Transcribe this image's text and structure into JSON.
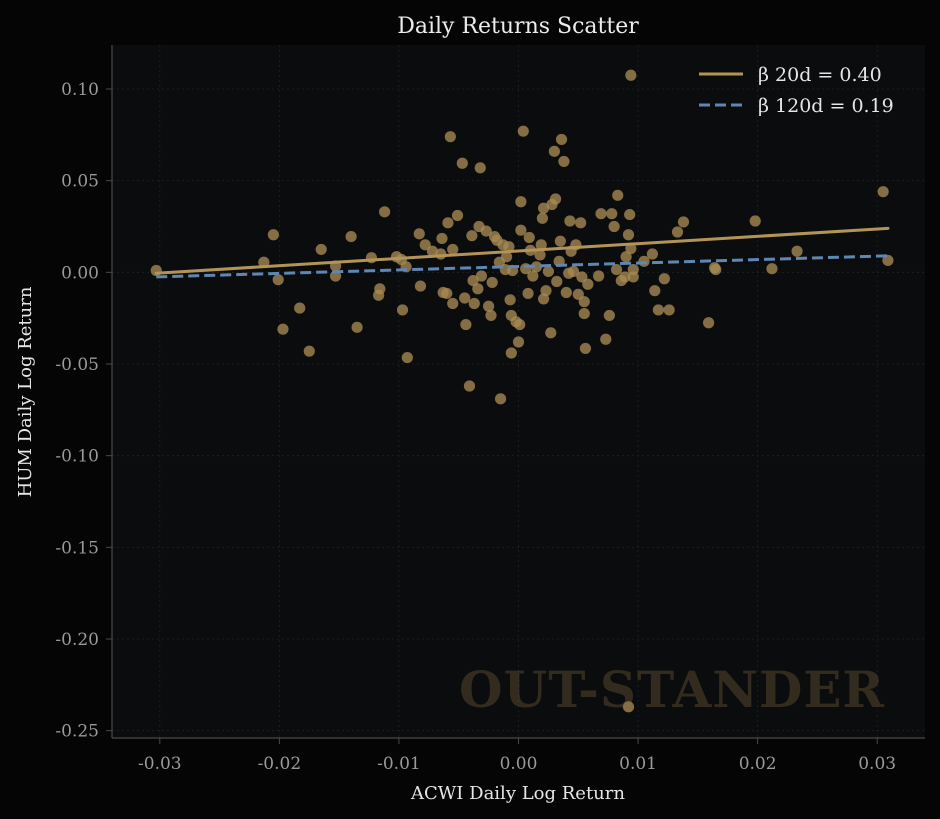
{
  "chart_data": {
    "type": "scatter",
    "title": "Daily Returns Scatter",
    "xlabel": "ACWI Daily Log Return",
    "ylabel": "HUM Daily Log Return",
    "xlim": [
      -0.034,
      0.034
    ],
    "ylim": [
      -0.254,
      0.124
    ],
    "xticks": [
      -0.03,
      -0.02,
      -0.01,
      0.0,
      0.01,
      0.02,
      0.03
    ],
    "xtick_labels": [
      "-0.03",
      "-0.02",
      "-0.01",
      "0.00",
      "0.01",
      "0.02",
      "0.03"
    ],
    "yticks": [
      0.1,
      0.05,
      0.0,
      -0.05,
      -0.1,
      -0.15,
      -0.2,
      -0.25
    ],
    "ytick_labels": [
      "0.10",
      "0.05",
      "0.00",
      "-0.05",
      "-0.10",
      "-0.15",
      "-0.20",
      "-0.25"
    ],
    "grid": true,
    "legend_position": "top-right",
    "watermark": "OUT-STANDER",
    "colors": {
      "background": "#050505",
      "plot_background": "#0b0c0e",
      "points": "#a88a52",
      "line_20d": "#b39458",
      "line_120d": "#5f87b3",
      "grid": "#1f2226",
      "axis": "#4a4a4a"
    },
    "series": [
      {
        "name": "",
        "kind": "points",
        "points": [
          [
            -0.0303,
            0.001
          ],
          [
            -0.0213,
            0.0055
          ],
          [
            -0.0205,
            0.0205
          ],
          [
            -0.0201,
            -0.004
          ],
          [
            -0.0197,
            -0.031
          ],
          [
            -0.0183,
            -0.0195
          ],
          [
            -0.0175,
            -0.043
          ],
          [
            -0.0165,
            0.0125
          ],
          [
            -0.0153,
            0.0035
          ],
          [
            -0.0153,
            -0.002
          ],
          [
            -0.014,
            0.0195
          ],
          [
            -0.0135,
            -0.03
          ],
          [
            -0.0123,
            0.008
          ],
          [
            -0.0117,
            -0.0125
          ],
          [
            -0.0116,
            -0.009
          ],
          [
            -0.0112,
            0.033
          ],
          [
            -0.0102,
            0.0085
          ],
          [
            -0.0098,
            0.007
          ],
          [
            -0.0097,
            -0.0205
          ],
          [
            -0.0094,
            0.003
          ],
          [
            -0.0093,
            -0.0465
          ],
          [
            -0.0083,
            0.021
          ],
          [
            -0.0082,
            -0.0075
          ],
          [
            -0.0078,
            0.015
          ],
          [
            -0.0072,
            0.0115
          ],
          [
            -0.0063,
            -0.011
          ],
          [
            -0.0064,
            0.0185
          ],
          [
            -0.0065,
            0.01
          ],
          [
            -0.006,
            -0.0115
          ],
          [
            -0.0059,
            0.027
          ],
          [
            -0.0057,
            0.074
          ],
          [
            -0.0055,
            -0.017
          ],
          [
            -0.0055,
            0.0125
          ],
          [
            -0.0051,
            0.031
          ],
          [
            -0.0047,
            0.0595
          ],
          [
            -0.0045,
            -0.014
          ],
          [
            -0.0044,
            -0.0285
          ],
          [
            -0.0041,
            -0.062
          ],
          [
            -0.0039,
            0.02
          ],
          [
            -0.0038,
            -0.0045
          ],
          [
            -0.0037,
            -0.017
          ],
          [
            -0.0034,
            -0.009
          ],
          [
            -0.0033,
            0.025
          ],
          [
            -0.0032,
            0.057
          ],
          [
            -0.0031,
            -0.002
          ],
          [
            -0.0027,
            0.0225
          ],
          [
            -0.0025,
            -0.0185
          ],
          [
            -0.0023,
            -0.0235
          ],
          [
            -0.0022,
            -0.0055
          ],
          [
            -0.002,
            0.0195
          ],
          [
            -0.0018,
            0.0175
          ],
          [
            -0.0016,
            0.0055
          ],
          [
            -0.0015,
            -0.069
          ],
          [
            -0.0013,
            0.015
          ],
          [
            -0.0011,
            0.0015
          ],
          [
            -0.001,
            0.0085
          ],
          [
            -0.0008,
            0.014
          ],
          [
            -0.0007,
            -0.015
          ],
          [
            -0.0006,
            -0.0235
          ],
          [
            -0.0006,
            -0.044
          ],
          [
            -0.0005,
            0.001
          ],
          [
            -0.0002,
            -0.027
          ],
          [
            0.0,
            -0.038
          ],
          [
            0.0001,
            -0.0285
          ],
          [
            0.0002,
            0.0385
          ],
          [
            0.0002,
            0.023
          ],
          [
            0.0004,
            0.077
          ],
          [
            0.0006,
            0.002
          ],
          [
            0.0008,
            -0.0115
          ],
          [
            0.0009,
            0.019
          ],
          [
            0.001,
            0.012
          ],
          [
            0.0012,
            -0.002
          ],
          [
            0.0015,
            0.003
          ],
          [
            0.0018,
            0.0095
          ],
          [
            0.0019,
            0.015
          ],
          [
            0.002,
            0.0295
          ],
          [
            0.0021,
            -0.0145
          ],
          [
            0.0021,
            0.035
          ],
          [
            0.0023,
            -0.01
          ],
          [
            0.0025,
            0.0005
          ],
          [
            0.0027,
            -0.033
          ],
          [
            0.0028,
            0.037
          ],
          [
            0.003,
            0.066
          ],
          [
            0.0031,
            0.04
          ],
          [
            0.0032,
            -0.005
          ],
          [
            0.0034,
            0.006
          ],
          [
            0.0035,
            0.017
          ],
          [
            0.0036,
            0.0725
          ],
          [
            0.0038,
            0.0605
          ],
          [
            0.004,
            -0.011
          ],
          [
            0.0042,
            -0.0005
          ],
          [
            0.0043,
            0.028
          ],
          [
            0.0044,
            0.0115
          ],
          [
            0.0046,
            0.0005
          ],
          [
            0.0048,
            0.015
          ],
          [
            0.005,
            -0.012
          ],
          [
            0.0052,
            0.027
          ],
          [
            0.0053,
            -0.0025
          ],
          [
            0.0055,
            -0.0225
          ],
          [
            0.0055,
            -0.016
          ],
          [
            0.0056,
            -0.0415
          ],
          [
            0.0058,
            -0.0065
          ],
          [
            0.0067,
            -0.002
          ],
          [
            0.0069,
            0.032
          ],
          [
            0.0073,
            -0.0365
          ],
          [
            0.0076,
            -0.0235
          ],
          [
            0.0078,
            0.032
          ],
          [
            0.008,
            0.025
          ],
          [
            0.0082,
            0.0015
          ],
          [
            0.0083,
            0.042
          ],
          [
            0.0086,
            -0.0045
          ],
          [
            0.0089,
            -0.0025
          ],
          [
            0.009,
            0.0085
          ],
          [
            0.0092,
            0.0205
          ],
          [
            0.0093,
            0.0315
          ],
          [
            0.0094,
            0.1075
          ],
          [
            0.0094,
            0.013
          ],
          [
            0.0096,
            -0.0025
          ],
          [
            0.0096,
            0.0015
          ],
          [
            0.0092,
            -0.237
          ],
          [
            0.0105,
            0.006
          ],
          [
            0.0112,
            0.01
          ],
          [
            0.0114,
            -0.01
          ],
          [
            0.0117,
            -0.0205
          ],
          [
            0.0122,
            -0.0035
          ],
          [
            0.0126,
            -0.0205
          ],
          [
            0.0133,
            0.022
          ],
          [
            0.0138,
            0.0275
          ],
          [
            0.0159,
            -0.0275
          ],
          [
            0.0164,
            0.0025
          ],
          [
            0.0165,
            0.0015
          ],
          [
            0.0198,
            0.028
          ],
          [
            0.0212,
            0.002
          ],
          [
            0.0233,
            0.0115
          ],
          [
            0.0305,
            0.044
          ],
          [
            0.0309,
            0.0065
          ]
        ]
      },
      {
        "name": "β 20d = 0.40",
        "kind": "line",
        "style": "solid",
        "x": [
          -0.0303,
          0.0309
        ],
        "y": [
          -0.0005,
          0.024
        ]
      },
      {
        "name": "β 120d = 0.19",
        "kind": "line",
        "style": "dashed",
        "x": [
          -0.0303,
          0.0309
        ],
        "y": [
          -0.0025,
          0.009
        ]
      }
    ]
  }
}
